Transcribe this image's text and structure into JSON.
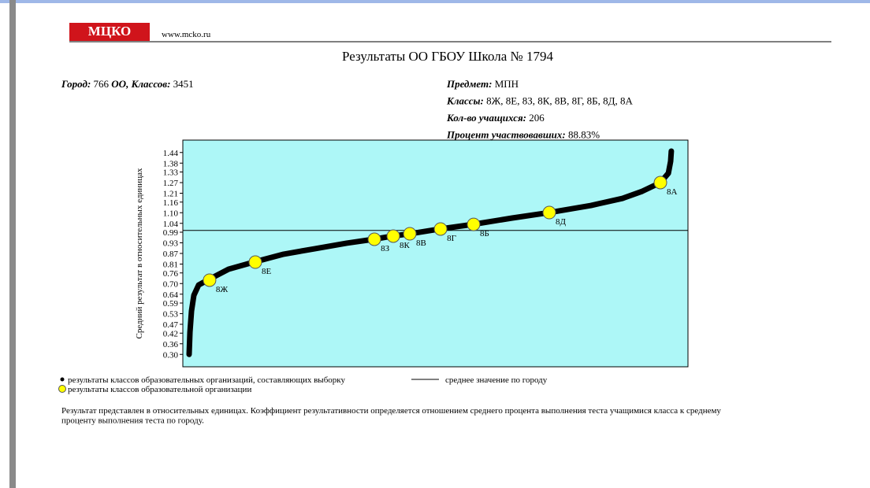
{
  "header": {
    "logo": "МЦКО",
    "url": "www.mcko.ru",
    "title": "Результаты ОО ГБОУ Школа № 1794"
  },
  "info_left": [
    {
      "label": "Город:",
      "value": "766"
    },
    {
      "label": "ОО, Классов:",
      "value": "3451"
    }
  ],
  "info_right": [
    {
      "label": "Предмет:",
      "value": "МПН"
    },
    {
      "label": "Классы:",
      "value": "8Ж, 8Е, 8З, 8К, 8В, 8Г, 8Б, 8Д, 8А"
    },
    {
      "label": "Кол-во учащихся:",
      "value": "206"
    },
    {
      "label": "Процент участвовавших:",
      "value": "88.83%"
    }
  ],
  "chart_data": {
    "type": "scatter",
    "y_label": "Средний результат в относительных единицах",
    "xlim": [
      -40,
      3570
    ],
    "ylim": [
      0.23,
      1.51
    ],
    "yticks": [
      {
        "value": 0.3,
        "label": "0.30"
      },
      {
        "value": 0.36,
        "label": "0.36"
      },
      {
        "value": 0.42,
        "label": "0.42"
      },
      {
        "value": 0.47,
        "label": "0.47"
      },
      {
        "value": 0.53,
        "label": "0.53"
      },
      {
        "value": 0.59,
        "label": "0.59"
      },
      {
        "value": 0.64,
        "label": "0.64"
      },
      {
        "value": 0.7,
        "label": "0.70"
      },
      {
        "value": 0.76,
        "label": "0.76"
      },
      {
        "value": 0.81,
        "label": "0.81"
      },
      {
        "value": 0.87,
        "label": "0.87"
      },
      {
        "value": 0.93,
        "label": "0.93"
      },
      {
        "value": 0.99,
        "label": "0.99"
      },
      {
        "value": 1.04,
        "label": "1.04"
      },
      {
        "value": 1.1,
        "label": "1.10"
      },
      {
        "value": 1.16,
        "label": "1.16"
      },
      {
        "value": 1.21,
        "label": "1.21"
      },
      {
        "value": 1.27,
        "label": "1.27"
      },
      {
        "value": 1.33,
        "label": "1.33"
      },
      {
        "value": 1.38,
        "label": "1.38"
      },
      {
        "value": 1.44,
        "label": "1.44"
      }
    ],
    "background": "#adf7f7",
    "series": [
      {
        "name": "результаты классов образовательных организаций, составляющих выборку",
        "color": "#000000",
        "x": [
          5,
          11,
          22,
          39,
          73,
          146,
          287,
          467,
          681,
          906,
          1131,
          1323,
          1458,
          1582,
          1796,
          2032,
          2314,
          2579,
          2877,
          3102,
          3243,
          3373,
          3430,
          3446,
          3451
        ],
        "values": [
          0.3,
          0.426,
          0.545,
          0.634,
          0.692,
          0.723,
          0.781,
          0.821,
          0.866,
          0.897,
          0.928,
          0.95,
          0.968,
          0.981,
          1.008,
          1.034,
          1.07,
          1.101,
          1.141,
          1.181,
          1.221,
          1.27,
          1.323,
          1.39,
          1.448
        ]
      },
      {
        "name": "результаты классов образовательной организации",
        "color": "#ffff00",
        "labels": [
          "8Ж",
          "8Е",
          "8З",
          "8К",
          "8В",
          "8Г",
          "8Б",
          "8Д",
          "8А"
        ],
        "x": [
          151,
          478,
          1329,
          1464,
          1582,
          1802,
          2038,
          2579,
          3373
        ],
        "values": [
          0.719,
          0.821,
          0.95,
          0.968,
          0.981,
          1.008,
          1.034,
          1.101,
          1.27
        ]
      }
    ],
    "reference_line": {
      "name": "среднее значение по городу",
      "value": 1.0
    }
  },
  "note": [
    "Результат представлен в относительных единицах. Коэффициент результативности определяется отношением среднего процента выполнения теста учащимися класса к среднему",
    "проценту выполнения теста по городу."
  ]
}
